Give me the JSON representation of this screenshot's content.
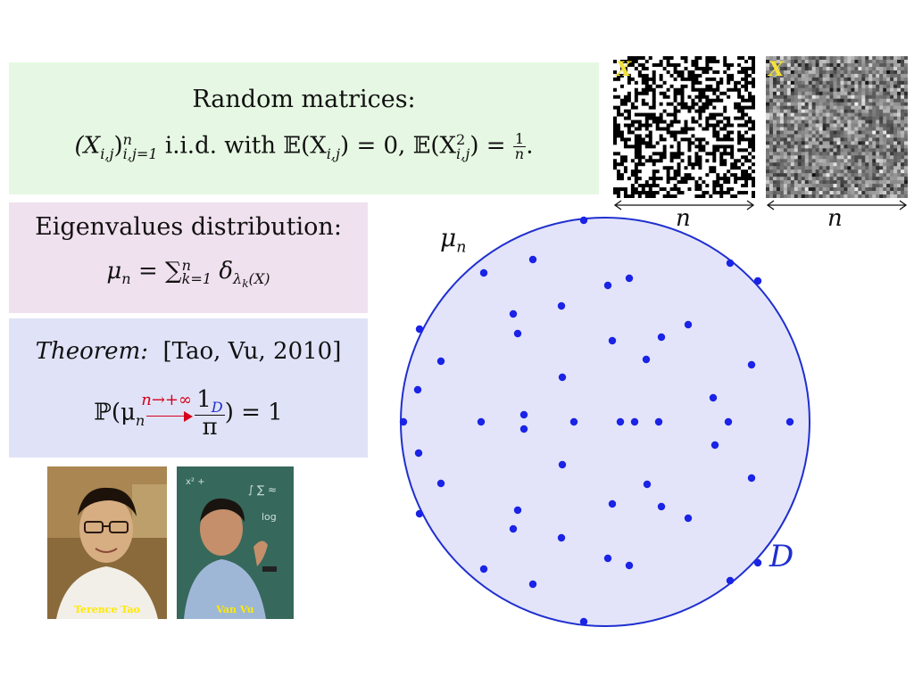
{
  "random_box": {
    "title": "Random matrices:",
    "line": {
      "matrix": "(X",
      "matrix_sub": "i,j",
      "matrix_close": ")",
      "matrix_sup": "n",
      "matrix_range": "i,j=1",
      "iid_text": " i.i.d. with ",
      "expect1": "𝔼(X",
      "expect1_sub": "i,j",
      "expect1_end": ") = 0, 𝔼(X",
      "expect2_sup": "2",
      "expect2_sub": "i,j",
      "expect2_end": ") = ",
      "frac_num": "1",
      "frac_den": "n",
      "period": "."
    }
  },
  "eigen_box": {
    "title": "Eigenvalues distribution:",
    "formula": {
      "mu": "μ",
      "mu_sub": "n",
      "equals": " = ∑",
      "sum_sup": "n",
      "sum_sub": "k=1",
      "delta": " δ",
      "delta_sub": "λ",
      "delta_sub_sub": "k",
      "delta_sub_tail": "(X)"
    }
  },
  "theorem_box": {
    "label": "Theorem:",
    "citation": "[Tao, Vu, 2010]",
    "formula": {
      "prob": "ℙ(μ",
      "mu_sub": "n",
      "arrow_label": "n→+∞",
      "indicator": "1",
      "indicator_sub": "D",
      "den": "π",
      "tail": ") = 1"
    }
  },
  "matrices": [
    {
      "label": "X",
      "dimension": "n",
      "style": "binary"
    },
    {
      "label": "X",
      "dimension": "n",
      "style": "gaussian"
    }
  ],
  "photos": [
    {
      "caption": "Terence Tao"
    },
    {
      "caption": "Van Vu"
    }
  ],
  "disc": {
    "mu_label": "μ",
    "mu_sub": "n",
    "domain_label": "D",
    "colors": {
      "fill": "#e3e4f9",
      "stroke": "#1f2fcf",
      "points": "#1a23e6"
    }
  },
  "colors": {
    "green_box": "#e6f8e3",
    "pink_box": "#f0e1ef",
    "blue_box": "#e0e3f7",
    "arrow_red": "#d6001c",
    "indicator_blue": "#1f2fcf",
    "matrix_label_yellow": "#f4e23a"
  }
}
